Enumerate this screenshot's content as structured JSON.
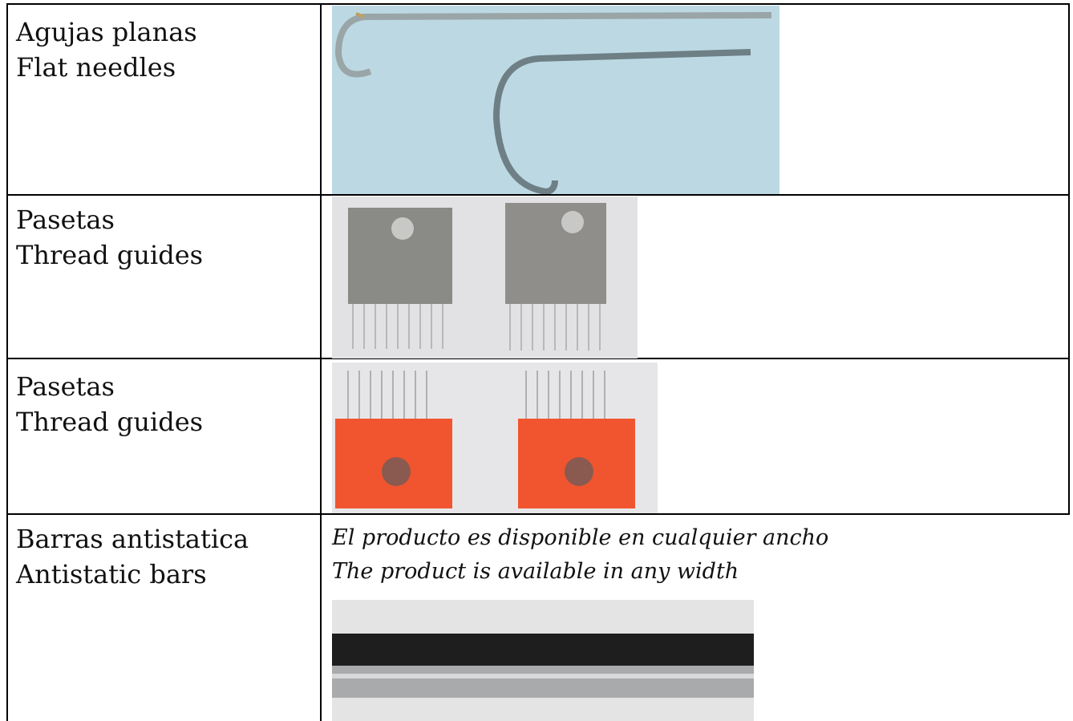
{
  "table": {
    "rows": [
      {
        "label": [
          "Agujas planas",
          "Flat needles"
        ]
      },
      {
        "label": [
          "Pasetas",
          "Thread guides"
        ]
      },
      {
        "label": [
          "Pasetas",
          "Thread guides"
        ]
      },
      {
        "label": [
          "Barras antistatica",
          "Antistatic bars"
        ],
        "caption": [
          "El producto es disponible en cualquier ancho",
          "The product is available in any width"
        ]
      }
    ]
  }
}
